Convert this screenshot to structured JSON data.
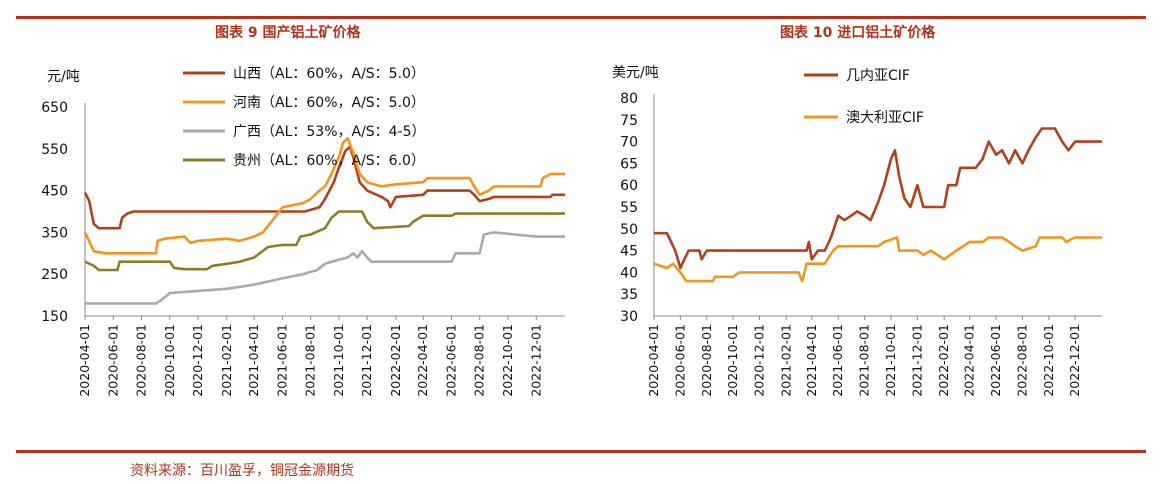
{
  "footer": {
    "source": "资料来源：百川盈孚，铜冠金源期货"
  },
  "colors": {
    "accent": "#b3321c"
  },
  "chart_data": [
    {
      "type": "line",
      "title": "图表 9 国产铝土矿价格",
      "ylabel": "元/吨",
      "ylim": [
        150,
        650
      ],
      "yticks": [
        150,
        250,
        350,
        450,
        550,
        650
      ],
      "xlim": [
        "2020-04-01",
        "2023-02-01"
      ],
      "xticks": [
        "2020-04-01",
        "2020-06-01",
        "2020-08-01",
        "2020-10-01",
        "2020-12-01",
        "2021-02-01",
        "2021-04-01",
        "2021-06-01",
        "2021-08-01",
        "2021-10-01",
        "2021-12-01",
        "2022-02-01",
        "2022-04-01",
        "2022-06-01",
        "2022-08-01",
        "2022-10-01",
        "2022-12-01"
      ],
      "legend_position": "top-left",
      "series": [
        {
          "name": "山西（AL：60%，A/S：5.0）",
          "color": "#b3401c",
          "points": [
            [
              "2020-04-01",
              445
            ],
            [
              "2020-04-10",
              425
            ],
            [
              "2020-04-20",
              370
            ],
            [
              "2020-05-01",
              360
            ],
            [
              "2020-06-15",
              360
            ],
            [
              "2020-06-20",
              385
            ],
            [
              "2020-07-01",
              395
            ],
            [
              "2020-07-15",
              400
            ],
            [
              "2021-07-20",
              400
            ],
            [
              "2021-08-20",
              410
            ],
            [
              "2021-09-01",
              430
            ],
            [
              "2021-09-20",
              470
            ],
            [
              "2021-10-01",
              505
            ],
            [
              "2021-10-15",
              545
            ],
            [
              "2021-10-25",
              555
            ],
            [
              "2021-11-01",
              530
            ],
            [
              "2021-11-15",
              470
            ],
            [
              "2021-12-01",
              450
            ],
            [
              "2022-01-01",
              435
            ],
            [
              "2022-01-15",
              425
            ],
            [
              "2022-01-20",
              410
            ],
            [
              "2022-02-01",
              435
            ],
            [
              "2022-04-01",
              440
            ],
            [
              "2022-04-10",
              450
            ],
            [
              "2022-07-10",
              450
            ],
            [
              "2022-07-20",
              440
            ],
            [
              "2022-08-01",
              425
            ],
            [
              "2022-08-20",
              430
            ],
            [
              "2022-09-01",
              435
            ],
            [
              "2023-01-01",
              435
            ],
            [
              "2023-01-05",
              440
            ],
            [
              "2023-02-01",
              440
            ]
          ]
        },
        {
          "name": "河南（AL：60%，A/S：5.0）",
          "color": "#f7941d",
          "points": [
            [
              "2020-04-01",
              350
            ],
            [
              "2020-04-20",
              305
            ],
            [
              "2020-05-15",
              300
            ],
            [
              "2020-09-01",
              300
            ],
            [
              "2020-09-05",
              330
            ],
            [
              "2020-09-20",
              335
            ],
            [
              "2020-11-01",
              340
            ],
            [
              "2020-11-15",
              325
            ],
            [
              "2020-12-01",
              330
            ],
            [
              "2021-02-01",
              335
            ],
            [
              "2021-03-01",
              330
            ],
            [
              "2021-04-01",
              340
            ],
            [
              "2021-04-20",
              350
            ],
            [
              "2021-05-15",
              385
            ],
            [
              "2021-06-01",
              410
            ],
            [
              "2021-07-15",
              420
            ],
            [
              "2021-08-01",
              430
            ],
            [
              "2021-08-15",
              445
            ],
            [
              "2021-09-01",
              460
            ],
            [
              "2021-09-15",
              490
            ],
            [
              "2021-10-01",
              530
            ],
            [
              "2021-10-10",
              565
            ],
            [
              "2021-10-20",
              575
            ],
            [
              "2021-11-01",
              540
            ],
            [
              "2021-11-15",
              490
            ],
            [
              "2021-12-01",
              470
            ],
            [
              "2022-01-01",
              460
            ],
            [
              "2022-02-01",
              465
            ],
            [
              "2022-04-01",
              470
            ],
            [
              "2022-04-10",
              480
            ],
            [
              "2022-07-10",
              480
            ],
            [
              "2022-07-20",
              460
            ],
            [
              "2022-08-01",
              440
            ],
            [
              "2022-08-20",
              450
            ],
            [
              "2022-09-01",
              460
            ],
            [
              "2022-12-10",
              460
            ],
            [
              "2022-12-15",
              480
            ],
            [
              "2023-01-01",
              490
            ],
            [
              "2023-02-01",
              490
            ]
          ]
        },
        {
          "name": "广西（AL：53%，A/S：4-5）",
          "color": "#aaaaaa",
          "points": [
            [
              "2020-04-01",
              180
            ],
            [
              "2020-09-01",
              180
            ],
            [
              "2020-09-15",
              190
            ],
            [
              "2020-10-01",
              205
            ],
            [
              "2020-12-01",
              210
            ],
            [
              "2021-02-01",
              215
            ],
            [
              "2021-04-01",
              225
            ],
            [
              "2021-06-01",
              240
            ],
            [
              "2021-07-15",
              250
            ],
            [
              "2021-08-15",
              260
            ],
            [
              "2021-09-01",
              275
            ],
            [
              "2021-10-01",
              285
            ],
            [
              "2021-10-20",
              290
            ],
            [
              "2021-11-01",
              300
            ],
            [
              "2021-11-10",
              290
            ],
            [
              "2021-11-20",
              305
            ],
            [
              "2021-12-01",
              290
            ],
            [
              "2021-12-10",
              280
            ],
            [
              "2022-06-01",
              280
            ],
            [
              "2022-06-10",
              300
            ],
            [
              "2022-08-01",
              300
            ],
            [
              "2022-08-10",
              345
            ],
            [
              "2022-09-01",
              350
            ],
            [
              "2022-12-01",
              340
            ],
            [
              "2023-02-01",
              340
            ]
          ]
        },
        {
          "name": "贵州（AL：60%，A/S：6.0）",
          "color": "#8b7d2a",
          "points": [
            [
              "2020-04-01",
              280
            ],
            [
              "2020-04-20",
              270
            ],
            [
              "2020-05-01",
              260
            ],
            [
              "2020-06-10",
              260
            ],
            [
              "2020-06-15",
              280
            ],
            [
              "2020-10-01",
              280
            ],
            [
              "2020-10-10",
              265
            ],
            [
              "2020-11-01",
              262
            ],
            [
              "2020-12-20",
              262
            ],
            [
              "2021-01-01",
              270
            ],
            [
              "2021-02-01",
              275
            ],
            [
              "2021-03-01",
              280
            ],
            [
              "2021-04-01",
              290
            ],
            [
              "2021-05-01",
              315
            ],
            [
              "2021-06-01",
              320
            ],
            [
              "2021-07-01",
              320
            ],
            [
              "2021-07-10",
              340
            ],
            [
              "2021-08-01",
              345
            ],
            [
              "2021-09-01",
              360
            ],
            [
              "2021-09-15",
              385
            ],
            [
              "2021-10-01",
              400
            ],
            [
              "2021-11-20",
              400
            ],
            [
              "2021-12-01",
              375
            ],
            [
              "2021-12-15",
              360
            ],
            [
              "2022-03-01",
              365
            ],
            [
              "2022-03-10",
              375
            ],
            [
              "2022-04-01",
              390
            ],
            [
              "2022-06-01",
              390
            ],
            [
              "2022-06-10",
              395
            ],
            [
              "2023-02-01",
              395
            ]
          ]
        }
      ]
    },
    {
      "type": "line",
      "title": "图表 10 进口铝土矿价格",
      "ylabel": "美元/吨",
      "ylim": [
        30,
        80
      ],
      "yticks": [
        30,
        35,
        40,
        45,
        50,
        55,
        60,
        65,
        70,
        75,
        80
      ],
      "xlim": [
        "2020-04-01",
        "2023-02-01"
      ],
      "xticks": [
        "2020-04-01",
        "2020-06-01",
        "2020-08-01",
        "2020-10-01",
        "2020-12-01",
        "2021-02-01",
        "2021-04-01",
        "2021-06-01",
        "2021-08-01",
        "2021-10-01",
        "2021-12-01",
        "2022-02-01",
        "2022-04-01",
        "2022-06-01",
        "2022-08-01",
        "2022-10-01",
        "2022-12-01"
      ],
      "legend_position": "top-left",
      "series": [
        {
          "name": "几内亚CIF",
          "color": "#b3401c",
          "points": [
            [
              "2020-04-01",
              49
            ],
            [
              "2020-05-01",
              49
            ],
            [
              "2020-05-20",
              45
            ],
            [
              "2020-06-01",
              41
            ],
            [
              "2020-06-10",
              43
            ],
            [
              "2020-06-20",
              45
            ],
            [
              "2020-07-15",
              45
            ],
            [
              "2020-07-20",
              43
            ],
            [
              "2020-08-01",
              45
            ],
            [
              "2021-03-20",
              45
            ],
            [
              "2021-03-25",
              47
            ],
            [
              "2021-04-01",
              43
            ],
            [
              "2021-04-15",
              45
            ],
            [
              "2021-05-01",
              45
            ],
            [
              "2021-05-15",
              48
            ],
            [
              "2021-06-01",
              53
            ],
            [
              "2021-06-15",
              52
            ],
            [
              "2021-07-01",
              53
            ],
            [
              "2021-07-15",
              54
            ],
            [
              "2021-08-01",
              53
            ],
            [
              "2021-08-15",
              52
            ],
            [
              "2021-09-01",
              56
            ],
            [
              "2021-09-15",
              60
            ],
            [
              "2021-10-01",
              66
            ],
            [
              "2021-10-10",
              68
            ],
            [
              "2021-10-20",
              62
            ],
            [
              "2021-11-01",
              57
            ],
            [
              "2021-11-15",
              55
            ],
            [
              "2021-12-01",
              60
            ],
            [
              "2021-12-15",
              55
            ],
            [
              "2022-02-01",
              55
            ],
            [
              "2022-02-10",
              60
            ],
            [
              "2022-03-01",
              60
            ],
            [
              "2022-03-10",
              64
            ],
            [
              "2022-04-15",
              64
            ],
            [
              "2022-05-01",
              66
            ],
            [
              "2022-05-15",
              70
            ],
            [
              "2022-06-01",
              67
            ],
            [
              "2022-06-15",
              68
            ],
            [
              "2022-07-01",
              65
            ],
            [
              "2022-07-15",
              68
            ],
            [
              "2022-08-01",
              65
            ],
            [
              "2022-08-15",
              68
            ],
            [
              "2022-09-01",
              71
            ],
            [
              "2022-09-15",
              73
            ],
            [
              "2022-10-15",
              73
            ],
            [
              "2022-11-01",
              70
            ],
            [
              "2022-11-15",
              68
            ],
            [
              "2022-12-01",
              70
            ],
            [
              "2023-02-01",
              70
            ]
          ]
        },
        {
          "name": "澳大利亚CIF",
          "color": "#f7941d",
          "points": [
            [
              "2020-04-01",
              42
            ],
            [
              "2020-05-01",
              41
            ],
            [
              "2020-05-15",
              42
            ],
            [
              "2020-06-01",
              40
            ],
            [
              "2020-06-15",
              38
            ],
            [
              "2020-08-15",
              38
            ],
            [
              "2020-08-20",
              39
            ],
            [
              "2020-10-01",
              39
            ],
            [
              "2020-10-15",
              40
            ],
            [
              "2021-02-01",
              40
            ],
            [
              "2021-03-01",
              40
            ],
            [
              "2021-03-10",
              38
            ],
            [
              "2021-03-20",
              42
            ],
            [
              "2021-04-15",
              42
            ],
            [
              "2021-05-01",
              42
            ],
            [
              "2021-05-20",
              45
            ],
            [
              "2021-06-01",
              46
            ],
            [
              "2021-09-01",
              46
            ],
            [
              "2021-09-15",
              47
            ],
            [
              "2021-10-15",
              48
            ],
            [
              "2021-10-20",
              45
            ],
            [
              "2021-12-01",
              45
            ],
            [
              "2021-12-15",
              44
            ],
            [
              "2022-01-01",
              45
            ],
            [
              "2022-02-01",
              43
            ],
            [
              "2022-03-01",
              45
            ],
            [
              "2022-04-01",
              47
            ],
            [
              "2022-05-01",
              47
            ],
            [
              "2022-05-15",
              48
            ],
            [
              "2022-06-15",
              48
            ],
            [
              "2022-07-01",
              47
            ],
            [
              "2022-07-15",
              46
            ],
            [
              "2022-08-01",
              45
            ],
            [
              "2022-09-01",
              46
            ],
            [
              "2022-09-10",
              48
            ],
            [
              "2022-11-01",
              48
            ],
            [
              "2022-11-10",
              47
            ],
            [
              "2022-12-01",
              48
            ],
            [
              "2023-02-01",
              48
            ]
          ]
        }
      ]
    }
  ]
}
